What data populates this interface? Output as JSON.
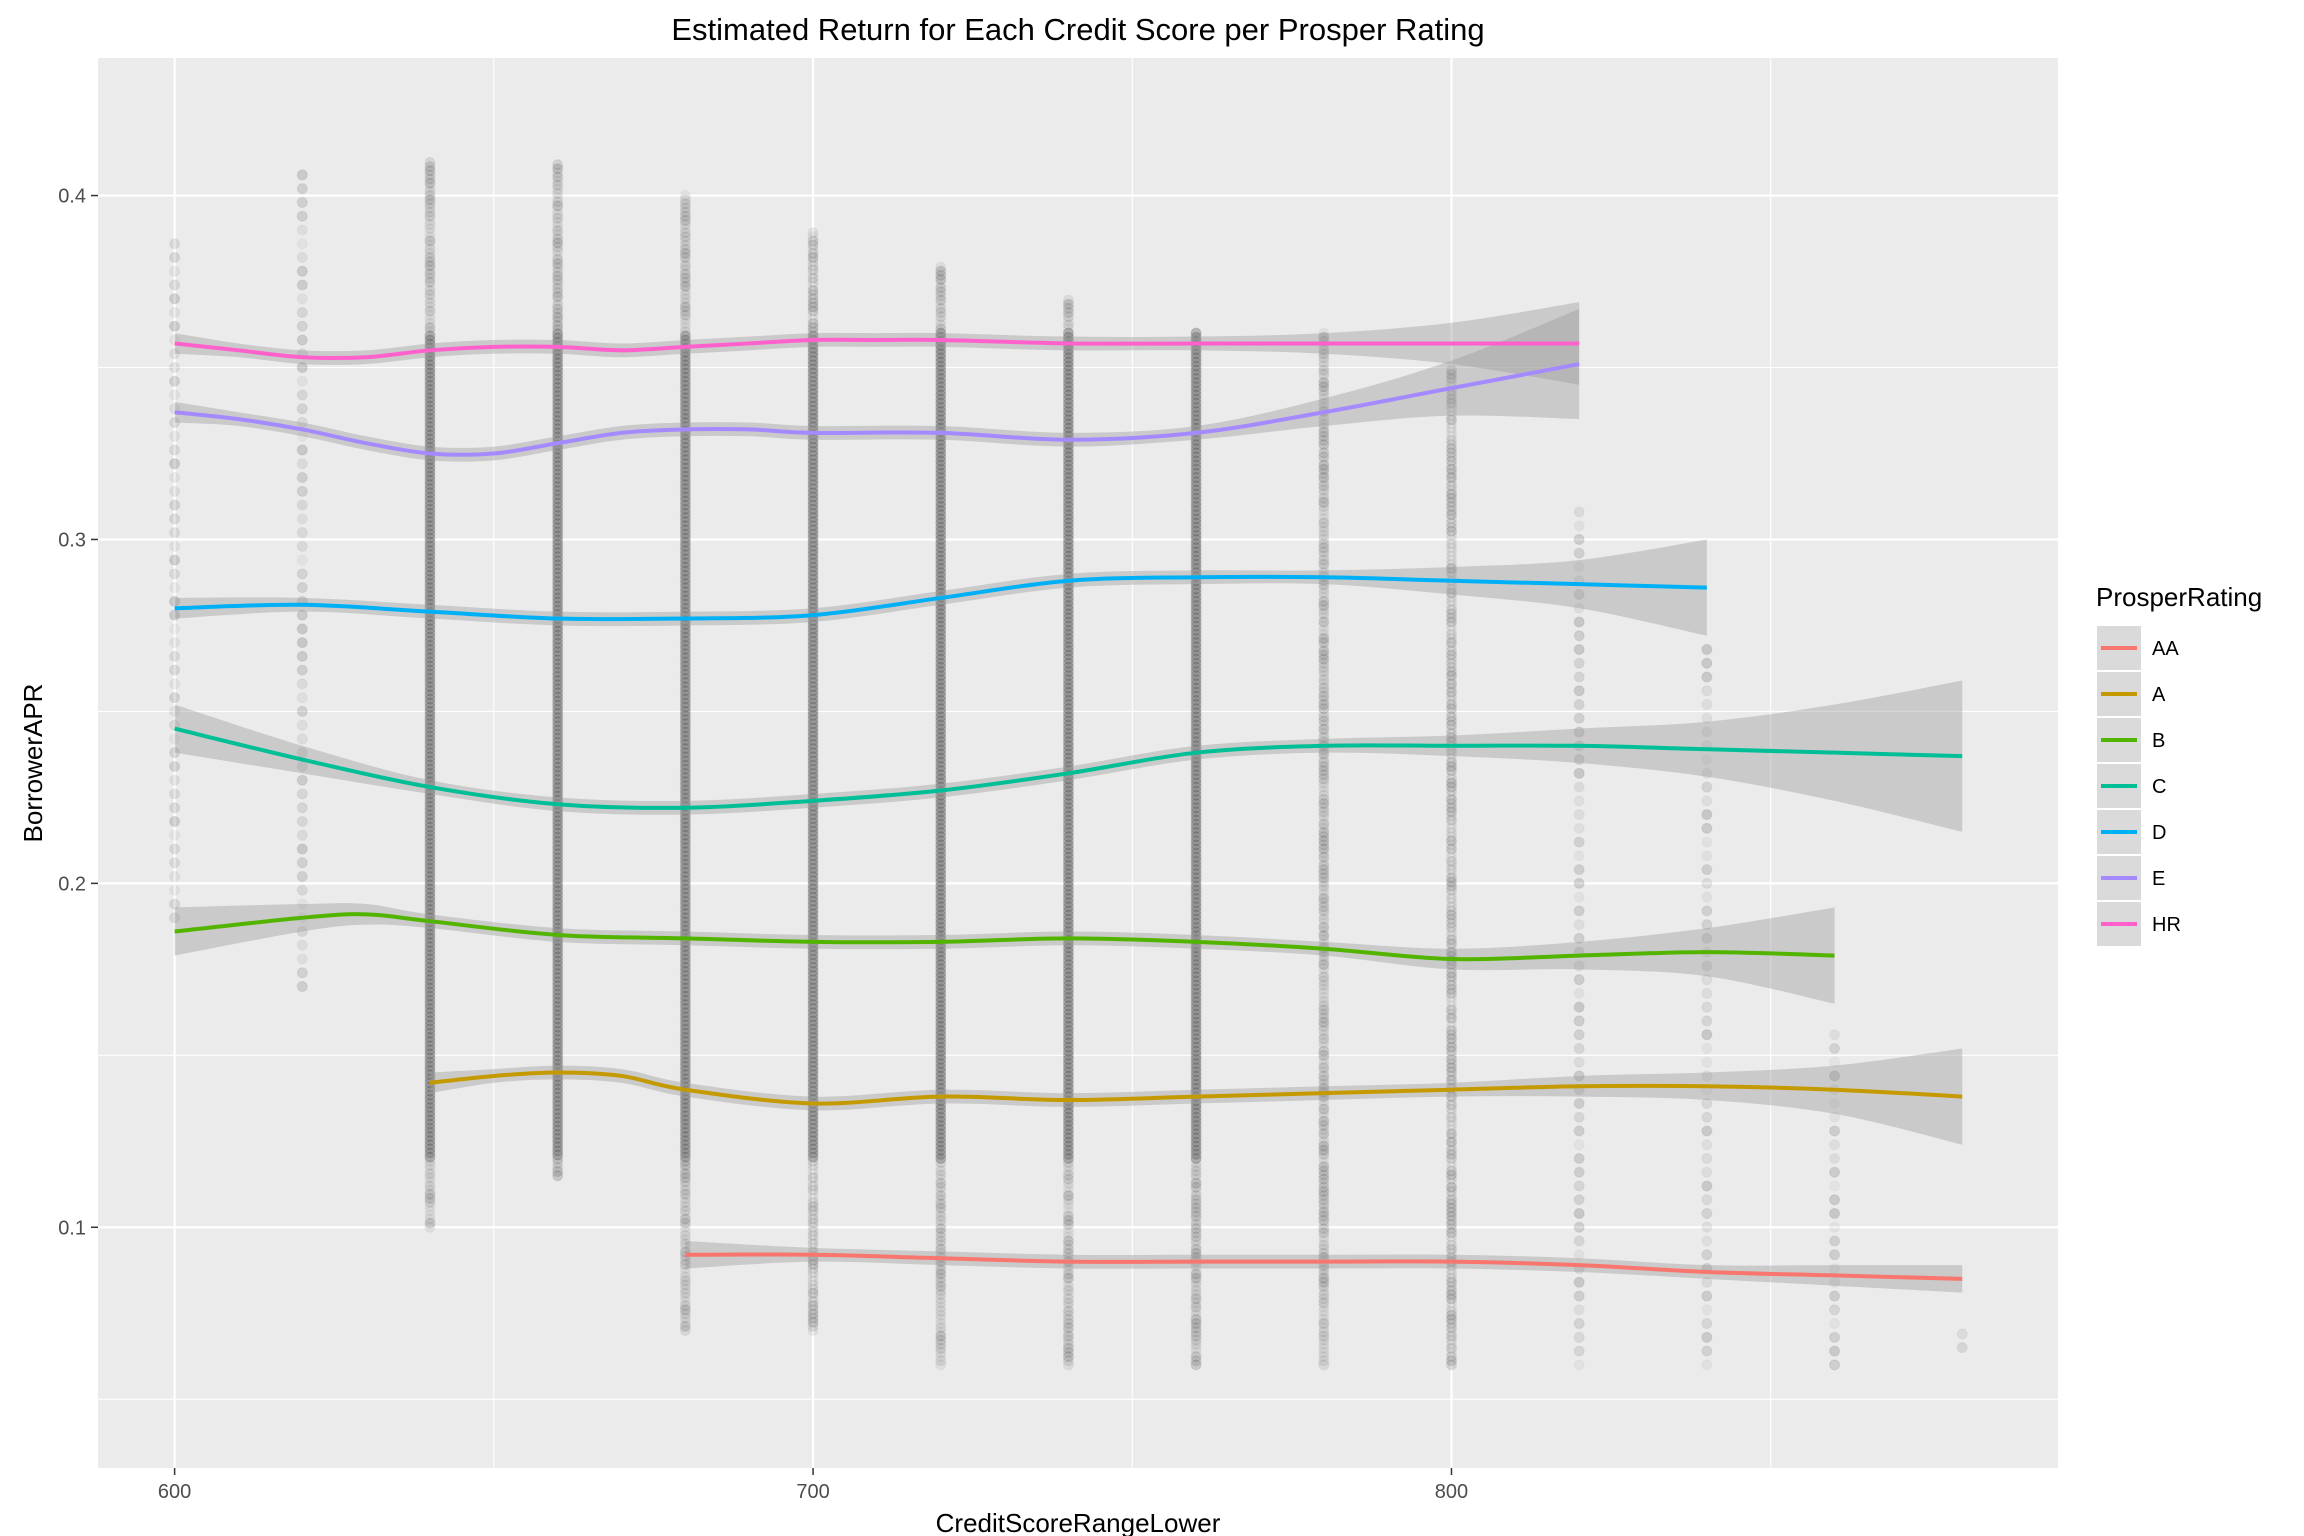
{
  "chart_data": {
    "type": "scatter",
    "title": "Estimated Return for Each Credit Score per Prosper Rating",
    "xlabel": "CreditScoreRangeLower",
    "ylabel": "BorrowerAPR",
    "xlim": [
      588,
      895
    ],
    "ylim": [
      0.03,
      0.44
    ],
    "x_ticks": [
      600,
      700,
      800
    ],
    "y_ticks": [
      0.1,
      0.2,
      0.3,
      0.4
    ],
    "grid": true,
    "legend": {
      "title": "ProsperRating",
      "placement": "right"
    },
    "point_columns": [
      {
        "x": 600,
        "ymin": 0.19,
        "ymax": 0.39
      },
      {
        "x": 620,
        "ymin": 0.17,
        "ymax": 0.41
      },
      {
        "x": 640,
        "ymin": 0.1,
        "ymax": 0.41
      },
      {
        "x": 660,
        "ymin": 0.115,
        "ymax": 0.41
      },
      {
        "x": 680,
        "ymin": 0.07,
        "ymax": 0.4
      },
      {
        "x": 700,
        "ymin": 0.07,
        "ymax": 0.39
      },
      {
        "x": 720,
        "ymin": 0.06,
        "ymax": 0.38
      },
      {
        "x": 740,
        "ymin": 0.06,
        "ymax": 0.37
      },
      {
        "x": 760,
        "ymin": 0.06,
        "ymax": 0.36
      },
      {
        "x": 780,
        "ymin": 0.06,
        "ymax": 0.36
      },
      {
        "x": 800,
        "ymin": 0.06,
        "ymax": 0.35
      },
      {
        "x": 820,
        "ymin": 0.06,
        "ymax": 0.31
      },
      {
        "x": 840,
        "ymin": 0.06,
        "ymax": 0.27
      },
      {
        "x": 860,
        "ymin": 0.06,
        "ymax": 0.16
      },
      {
        "x": 880,
        "ymin": 0.065,
        "ymax": 0.07
      }
    ],
    "series": [
      {
        "name": "HR",
        "color": "#FF61CC",
        "points": [
          [
            600,
            0.357
          ],
          [
            610,
            0.355
          ],
          [
            620,
            0.353
          ],
          [
            630,
            0.353
          ],
          [
            640,
            0.355
          ],
          [
            650,
            0.356
          ],
          [
            660,
            0.356
          ],
          [
            670,
            0.355
          ],
          [
            680,
            0.356
          ],
          [
            690,
            0.357
          ],
          [
            700,
            0.358
          ],
          [
            710,
            0.358
          ],
          [
            720,
            0.358
          ],
          [
            740,
            0.357
          ],
          [
            760,
            0.357
          ],
          [
            780,
            0.357
          ],
          [
            800,
            0.357
          ],
          [
            820,
            0.357
          ]
        ],
        "band": [
          0.003,
          0.002,
          0.002,
          0.002,
          0.002,
          0.002,
          0.002,
          0.002,
          0.002,
          0.002,
          0.002,
          0.002,
          0.002,
          0.002,
          0.002,
          0.003,
          0.006,
          0.012
        ]
      },
      {
        "name": "E",
        "color": "#A58AFF",
        "points": [
          [
            600,
            0.337
          ],
          [
            610,
            0.335
          ],
          [
            620,
            0.332
          ],
          [
            630,
            0.328
          ],
          [
            640,
            0.325
          ],
          [
            650,
            0.325
          ],
          [
            660,
            0.328
          ],
          [
            670,
            0.331
          ],
          [
            680,
            0.332
          ],
          [
            690,
            0.332
          ],
          [
            700,
            0.331
          ],
          [
            720,
            0.331
          ],
          [
            740,
            0.329
          ],
          [
            760,
            0.331
          ],
          [
            780,
            0.337
          ],
          [
            800,
            0.344
          ],
          [
            820,
            0.351
          ]
        ],
        "band": [
          0.003,
          0.002,
          0.002,
          0.002,
          0.002,
          0.002,
          0.002,
          0.002,
          0.002,
          0.002,
          0.002,
          0.002,
          0.002,
          0.002,
          0.004,
          0.008,
          0.016
        ]
      },
      {
        "name": "D",
        "color": "#00B0F6",
        "points": [
          [
            600,
            0.28
          ],
          [
            620,
            0.281
          ],
          [
            640,
            0.279
          ],
          [
            660,
            0.277
          ],
          [
            680,
            0.277
          ],
          [
            700,
            0.278
          ],
          [
            720,
            0.283
          ],
          [
            740,
            0.288
          ],
          [
            760,
            0.289
          ],
          [
            780,
            0.289
          ],
          [
            800,
            0.288
          ],
          [
            820,
            0.287
          ],
          [
            840,
            0.286
          ]
        ],
        "band": [
          0.003,
          0.002,
          0.002,
          0.002,
          0.002,
          0.002,
          0.002,
          0.002,
          0.002,
          0.002,
          0.004,
          0.007,
          0.014
        ]
      },
      {
        "name": "C",
        "color": "#00BF96",
        "points": [
          [
            600,
            0.245
          ],
          [
            620,
            0.236
          ],
          [
            640,
            0.228
          ],
          [
            660,
            0.223
          ],
          [
            680,
            0.222
          ],
          [
            700,
            0.224
          ],
          [
            720,
            0.227
          ],
          [
            740,
            0.232
          ],
          [
            760,
            0.238
          ],
          [
            780,
            0.24
          ],
          [
            800,
            0.24
          ],
          [
            820,
            0.24
          ],
          [
            840,
            0.239
          ],
          [
            860,
            0.238
          ],
          [
            880,
            0.237
          ]
        ],
        "band": [
          0.007,
          0.004,
          0.002,
          0.002,
          0.002,
          0.002,
          0.002,
          0.002,
          0.002,
          0.002,
          0.003,
          0.005,
          0.008,
          0.014,
          0.022
        ]
      },
      {
        "name": "B",
        "color": "#53B400",
        "points": [
          [
            600,
            0.186
          ],
          [
            620,
            0.19
          ],
          [
            630,
            0.191
          ],
          [
            640,
            0.189
          ],
          [
            660,
            0.185
          ],
          [
            680,
            0.184
          ],
          [
            700,
            0.183
          ],
          [
            720,
            0.183
          ],
          [
            740,
            0.184
          ],
          [
            760,
            0.183
          ],
          [
            780,
            0.181
          ],
          [
            800,
            0.178
          ],
          [
            820,
            0.179
          ],
          [
            840,
            0.18
          ],
          [
            860,
            0.179
          ]
        ],
        "band": [
          0.007,
          0.004,
          0.003,
          0.002,
          0.002,
          0.002,
          0.002,
          0.002,
          0.002,
          0.002,
          0.002,
          0.003,
          0.004,
          0.007,
          0.014
        ]
      },
      {
        "name": "A",
        "color": "#C49A00",
        "points": [
          [
            640,
            0.142
          ],
          [
            650,
            0.144
          ],
          [
            660,
            0.145
          ],
          [
            670,
            0.144
          ],
          [
            680,
            0.14
          ],
          [
            700,
            0.136
          ],
          [
            720,
            0.138
          ],
          [
            740,
            0.137
          ],
          [
            760,
            0.138
          ],
          [
            780,
            0.139
          ],
          [
            800,
            0.14
          ],
          [
            820,
            0.141
          ],
          [
            840,
            0.141
          ],
          [
            860,
            0.14
          ],
          [
            880,
            0.138
          ]
        ],
        "band": [
          0.003,
          0.002,
          0.002,
          0.002,
          0.002,
          0.002,
          0.002,
          0.002,
          0.002,
          0.002,
          0.002,
          0.003,
          0.004,
          0.007,
          0.014
        ]
      },
      {
        "name": "AA",
        "color": "#F8766D",
        "points": [
          [
            680,
            0.092
          ],
          [
            700,
            0.092
          ],
          [
            720,
            0.091
          ],
          [
            740,
            0.09
          ],
          [
            760,
            0.09
          ],
          [
            780,
            0.09
          ],
          [
            800,
            0.09
          ],
          [
            820,
            0.089
          ],
          [
            840,
            0.087
          ],
          [
            860,
            0.086
          ],
          [
            880,
            0.085
          ]
        ],
        "band": [
          0.004,
          0.002,
          0.002,
          0.002,
          0.002,
          0.002,
          0.002,
          0.002,
          0.002,
          0.003,
          0.004
        ]
      }
    ]
  }
}
